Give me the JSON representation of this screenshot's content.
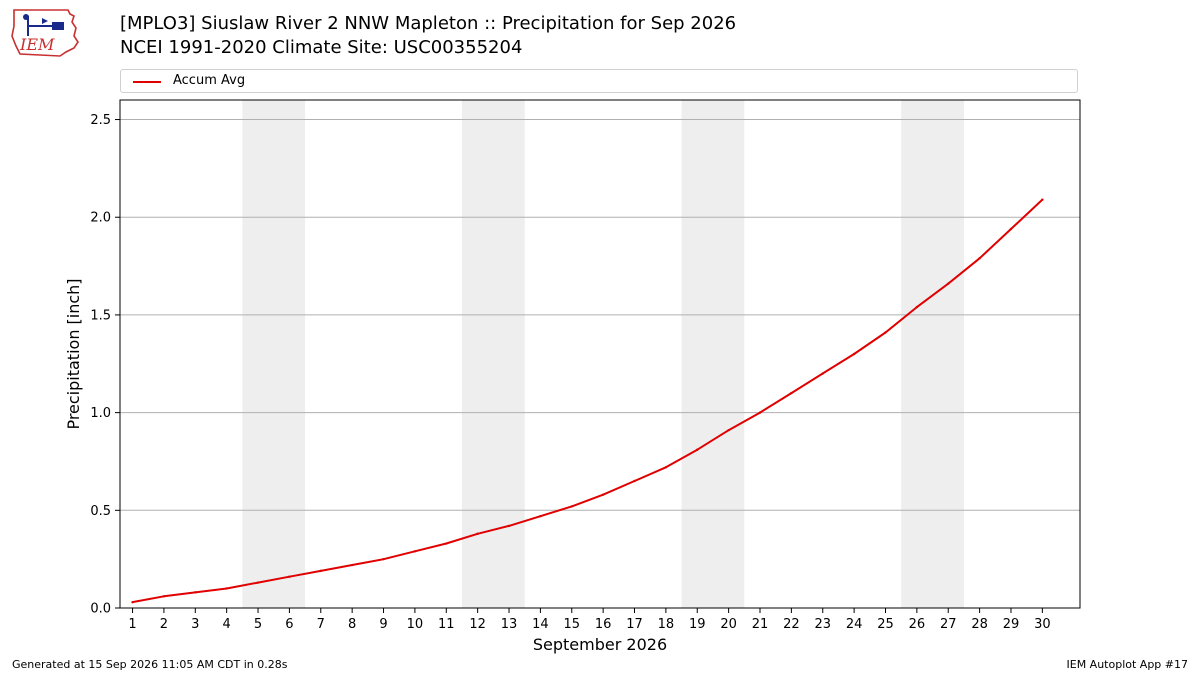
{
  "logo": {
    "text": "IEM"
  },
  "header": {
    "title_line1": "[MPLO3] Siuslaw River 2 NNW Mapleton :: Precipitation for Sep 2026",
    "title_line2": "NCEI 1991-2020 Climate Site: USC00355204"
  },
  "footer": {
    "left": "Generated at 15 Sep 2026 11:05 AM CDT in 0.28s",
    "right": "IEM Autoplot App #17"
  },
  "colors": {
    "line": "#e00000",
    "weekend_band": "#eeeeee",
    "grid": "#b0b0b0"
  },
  "chart_data": {
    "type": "line",
    "xlabel": "September 2026",
    "ylabel": "Precipitation [inch]",
    "xlim": [
      0.6,
      31.2
    ],
    "ylim": [
      0,
      2.6
    ],
    "y_ticks": [
      0.0,
      0.5,
      1.0,
      1.5,
      2.0,
      2.5
    ],
    "y_tick_labels": [
      "0.0",
      "0.5",
      "1.0",
      "1.5",
      "2.0",
      "2.5"
    ],
    "grid": "horizontal",
    "legend_placement": "top",
    "shaded_day_ranges": [
      [
        4.5,
        6.5
      ],
      [
        11.5,
        13.5
      ],
      [
        18.5,
        20.5
      ],
      [
        25.5,
        27.5
      ]
    ],
    "x": [
      1,
      2,
      3,
      4,
      5,
      6,
      7,
      8,
      9,
      10,
      11,
      12,
      13,
      14,
      15,
      16,
      17,
      18,
      19,
      20,
      21,
      22,
      23,
      24,
      25,
      26,
      27,
      28,
      29,
      30
    ],
    "x_tick_labels": [
      "1",
      "2",
      "3",
      "4",
      "5",
      "6",
      "7",
      "8",
      "9",
      "10",
      "11",
      "12",
      "13",
      "14",
      "15",
      "16",
      "17",
      "18",
      "19",
      "20",
      "21",
      "22",
      "23",
      "24",
      "25",
      "26",
      "27",
      "28",
      "29",
      "30"
    ],
    "series": [
      {
        "name": "Accum Avg",
        "color": "#e00000",
        "values": [
          0.03,
          0.06,
          0.08,
          0.1,
          0.13,
          0.16,
          0.19,
          0.22,
          0.25,
          0.29,
          0.33,
          0.38,
          0.42,
          0.47,
          0.52,
          0.58,
          0.65,
          0.72,
          0.81,
          0.91,
          1.0,
          1.1,
          1.2,
          1.3,
          1.41,
          1.54,
          1.66,
          1.79,
          1.94,
          2.09
        ]
      }
    ]
  }
}
